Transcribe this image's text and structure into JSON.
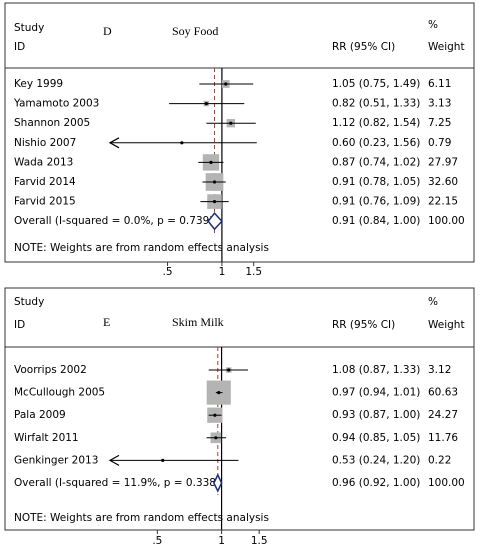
{
  "chart_data": [
    {
      "type": "forest",
      "panel": "D",
      "title": "Soy Food",
      "header": {
        "study": "Study",
        "id": "ID",
        "percent": "%",
        "estimate": "RR (95% CI)",
        "weight": "Weight"
      },
      "studies": [
        "Key 1999",
        "Yamamoto 2003",
        "Shannon 2005",
        "Nishio 2007",
        "Wada 2013",
        "Farvid 2014",
        "Farvid 2015"
      ],
      "values": [
        1.05,
        0.82,
        1.12,
        0.6,
        0.87,
        0.91,
        0.91
      ],
      "lower": [
        0.75,
        0.51,
        0.82,
        0.23,
        0.74,
        0.78,
        0.76
      ],
      "upper": [
        1.49,
        1.33,
        1.54,
        1.56,
        1.02,
        1.05,
        1.09
      ],
      "value_labels": [
        "1.05 (0.75, 1.49)",
        "0.82 (0.51, 1.33)",
        "1.12 (0.82, 1.54)",
        "0.60 (0.23, 1.56)",
        "0.87 (0.74, 1.02)",
        "0.91 (0.78, 1.05)",
        "0.91 (0.76, 1.09)"
      ],
      "weights": [
        6.11,
        3.13,
        7.25,
        0.79,
        27.97,
        32.6,
        22.15
      ],
      "weight_labels": [
        "6.11",
        "3.13",
        "7.25",
        "0.79",
        "27.97",
        "32.60",
        "22.15"
      ],
      "overall": {
        "label": "Overall  (I-squared = 0.0%, p = 0.739)",
        "value": 0.91,
        "lower": 0.84,
        "upper": 1.0,
        "value_label": "0.91 (0.84, 1.00)",
        "weight": 100,
        "weight_label": "100.00"
      },
      "note": "NOTE: Weights are from random effects analysis",
      "xscale": "log",
      "xlim": [
        0.24,
        1.8
      ],
      "xticks": [
        {
          "value": 0.5,
          "label": ".5"
        },
        1,
        1.5
      ]
    },
    {
      "type": "forest",
      "panel": "E",
      "title": "Skim Milk",
      "header": {
        "study": "Study",
        "id": "ID",
        "percent": "%",
        "estimate": "RR (95% CI)",
        "weight": "Weight"
      },
      "studies": [
        "Voorrips 2002",
        "McCullough 2005",
        "Pala 2009",
        "Wirfalt 2011",
        "Genkinger 2013"
      ],
      "values": [
        1.08,
        0.97,
        0.93,
        0.94,
        0.53
      ],
      "lower": [
        0.87,
        0.94,
        0.87,
        0.85,
        0.24
      ],
      "upper": [
        1.33,
        1.01,
        1.0,
        1.05,
        1.2
      ],
      "value_labels": [
        "1.08 (0.87, 1.33)",
        "0.97 (0.94, 1.01)",
        "0.93 (0.87, 1.00)",
        "0.94 (0.85, 1.05)",
        "0.53 (0.24, 1.20)"
      ],
      "weights": [
        3.12,
        60.63,
        24.27,
        11.76,
        0.22
      ],
      "weight_labels": [
        "3.12",
        "60.63",
        "24.27",
        "11.76",
        "0.22"
      ],
      "overall": {
        "label": "Overall  (I-squared = 11.9%, p = 0.338)",
        "value": 0.96,
        "lower": 0.92,
        "upper": 1.0,
        "value_label": "0.96 (0.92, 1.00)",
        "weight": 100,
        "weight_label": "100.00"
      },
      "note": "NOTE: Weights are from random effects analysis",
      "xscale": "log",
      "xlim": [
        0.3,
        1.65
      ],
      "xticks": [
        {
          "value": 0.5,
          "label": ".5"
        },
        1,
        1.5
      ]
    }
  ]
}
